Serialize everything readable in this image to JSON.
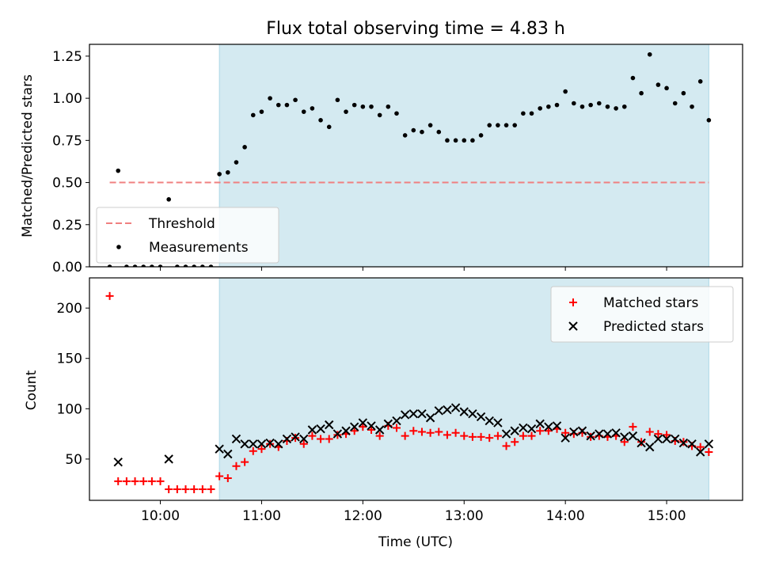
{
  "chart_data": [
    {
      "type": "scatter",
      "title": "Flux total observing time = 4.83 h",
      "xlabel": "",
      "ylabel": "Matched/Predicted stars",
      "xlim": [
        "09:18",
        "15:45"
      ],
      "ylim": [
        0,
        1.32
      ],
      "yticks": [
        0.0,
        0.25,
        0.5,
        0.75,
        1.0,
        1.25
      ],
      "ytick_labels": [
        "0.00",
        "0.25",
        "0.50",
        "0.75",
        "1.00",
        "1.25"
      ],
      "xticks": [
        "10:00",
        "11:00",
        "12:00",
        "13:00",
        "14:00",
        "15:00"
      ],
      "shaded_interval": [
        "10:35",
        "15:25"
      ],
      "shaded_color": "#d4eaf1",
      "threshold": {
        "name": "Threshold",
        "value": 0.5,
        "x_range": [
          "09:30",
          "15:25"
        ],
        "color": "#f08080",
        "style": "dashed"
      },
      "legend_position": "lower-left",
      "series": [
        {
          "name": "Measurements",
          "marker": "dot",
          "color": "#000000",
          "points": [
            [
              "09:30",
              0.0
            ],
            [
              "09:35",
              0.57
            ],
            [
              "09:40",
              0.0
            ],
            [
              "09:45",
              0.0
            ],
            [
              "09:50",
              0.0
            ],
            [
              "09:55",
              0.0
            ],
            [
              "10:00",
              0.0
            ],
            [
              "10:05",
              0.4
            ],
            [
              "10:10",
              0.0
            ],
            [
              "10:15",
              0.0
            ],
            [
              "10:20",
              0.0
            ],
            [
              "10:25",
              0.0
            ],
            [
              "10:30",
              0.0
            ],
            [
              "10:35",
              0.55
            ],
            [
              "10:40",
              0.56
            ],
            [
              "10:45",
              0.62
            ],
            [
              "10:50",
              0.71
            ],
            [
              "10:55",
              0.9
            ],
            [
              "11:00",
              0.92
            ],
            [
              "11:05",
              1.0
            ],
            [
              "11:10",
              0.96
            ],
            [
              "11:15",
              0.96
            ],
            [
              "11:20",
              0.99
            ],
            [
              "11:25",
              0.92
            ],
            [
              "11:30",
              0.94
            ],
            [
              "11:35",
              0.87
            ],
            [
              "11:40",
              0.83
            ],
            [
              "11:45",
              0.99
            ],
            [
              "11:50",
              0.92
            ],
            [
              "11:55",
              0.96
            ],
            [
              "12:00",
              0.95
            ],
            [
              "12:05",
              0.95
            ],
            [
              "12:10",
              0.9
            ],
            [
              "12:15",
              0.95
            ],
            [
              "12:20",
              0.91
            ],
            [
              "12:25",
              0.78
            ],
            [
              "12:30",
              0.81
            ],
            [
              "12:35",
              0.8
            ],
            [
              "12:40",
              0.84
            ],
            [
              "12:45",
              0.8
            ],
            [
              "12:50",
              0.75
            ],
            [
              "12:55",
              0.75
            ],
            [
              "13:00",
              0.75
            ],
            [
              "13:05",
              0.75
            ],
            [
              "13:10",
              0.78
            ],
            [
              "13:15",
              0.84
            ],
            [
              "13:20",
              0.84
            ],
            [
              "13:25",
              0.84
            ],
            [
              "13:30",
              0.84
            ],
            [
              "13:35",
              0.91
            ],
            [
              "13:40",
              0.91
            ],
            [
              "13:45",
              0.94
            ],
            [
              "13:50",
              0.95
            ],
            [
              "13:55",
              0.96
            ],
            [
              "14:00",
              1.04
            ],
            [
              "14:05",
              0.97
            ],
            [
              "14:10",
              0.95
            ],
            [
              "14:15",
              0.96
            ],
            [
              "14:20",
              0.97
            ],
            [
              "14:25",
              0.95
            ],
            [
              "14:30",
              0.94
            ],
            [
              "14:35",
              0.95
            ],
            [
              "14:40",
              1.12
            ],
            [
              "14:45",
              1.03
            ],
            [
              "14:50",
              1.26
            ],
            [
              "14:55",
              1.08
            ],
            [
              "15:00",
              1.06
            ],
            [
              "15:05",
              0.97
            ],
            [
              "15:10",
              1.03
            ],
            [
              "15:15",
              0.95
            ],
            [
              "15:20",
              1.1
            ],
            [
              "15:25",
              0.87
            ]
          ]
        }
      ]
    },
    {
      "type": "scatter",
      "title": "",
      "xlabel": "Time (UTC)",
      "ylabel": "Count",
      "xlim": [
        "09:18",
        "15:45"
      ],
      "ylim": [
        9,
        230
      ],
      "yticks": [
        50,
        100,
        150,
        200
      ],
      "ytick_labels": [
        "50",
        "100",
        "150",
        "200"
      ],
      "xticks": [
        "10:00",
        "11:00",
        "12:00",
        "13:00",
        "14:00",
        "15:00"
      ],
      "xtick_labels": [
        "10:00",
        "11:00",
        "12:00",
        "13:00",
        "14:00",
        "15:00"
      ],
      "shaded_interval": [
        "10:35",
        "15:25"
      ],
      "shaded_color": "#d4eaf1",
      "legend_position": "upper-right",
      "series": [
        {
          "name": "Matched stars",
          "marker": "plus",
          "color": "#ff0000",
          "points": [
            [
              "09:30",
              212
            ],
            [
              "09:35",
              28
            ],
            [
              "09:40",
              28
            ],
            [
              "09:45",
              28
            ],
            [
              "09:50",
              28
            ],
            [
              "09:55",
              28
            ],
            [
              "10:00",
              28
            ],
            [
              "10:05",
              20
            ],
            [
              "10:10",
              20
            ],
            [
              "10:15",
              20
            ],
            [
              "10:20",
              20
            ],
            [
              "10:25",
              20
            ],
            [
              "10:30",
              20
            ],
            [
              "10:35",
              33
            ],
            [
              "10:40",
              31
            ],
            [
              "10:45",
              43
            ],
            [
              "10:50",
              47
            ],
            [
              "10:55",
              58
            ],
            [
              "11:00",
              60
            ],
            [
              "11:05",
              65
            ],
            [
              "11:10",
              62
            ],
            [
              "11:15",
              68
            ],
            [
              "11:20",
              71
            ],
            [
              "11:25",
              65
            ],
            [
              "11:30",
              73
            ],
            [
              "11:35",
              70
            ],
            [
              "11:40",
              70
            ],
            [
              "11:45",
              74
            ],
            [
              "11:50",
              75
            ],
            [
              "11:55",
              78
            ],
            [
              "12:00",
              82
            ],
            [
              "12:05",
              79
            ],
            [
              "12:10",
              73
            ],
            [
              "12:15",
              83
            ],
            [
              "12:20",
              81
            ],
            [
              "12:25",
              73
            ],
            [
              "12:30",
              78
            ],
            [
              "12:35",
              77
            ],
            [
              "12:40",
              76
            ],
            [
              "12:45",
              77
            ],
            [
              "12:50",
              74
            ],
            [
              "12:55",
              76
            ],
            [
              "13:00",
              73
            ],
            [
              "13:05",
              72
            ],
            [
              "13:10",
              72
            ],
            [
              "13:15",
              71
            ],
            [
              "13:20",
              73
            ],
            [
              "13:25",
              63
            ],
            [
              "13:30",
              67
            ],
            [
              "13:35",
              73
            ],
            [
              "13:40",
              73
            ],
            [
              "13:45",
              78
            ],
            [
              "13:50",
              78
            ],
            [
              "13:55",
              80
            ],
            [
              "14:00",
              76
            ],
            [
              "14:05",
              75
            ],
            [
              "14:10",
              76
            ],
            [
              "14:15",
              72
            ],
            [
              "14:20",
              73
            ],
            [
              "14:25",
              72
            ],
            [
              "14:30",
              73
            ],
            [
              "14:35",
              67
            ],
            [
              "14:40",
              82
            ],
            [
              "14:45",
              67
            ],
            [
              "14:50",
              77
            ],
            [
              "14:55",
              75
            ],
            [
              "15:00",
              74
            ],
            [
              "15:05",
              68
            ],
            [
              "15:10",
              67
            ],
            [
              "15:15",
              63
            ],
            [
              "15:20",
              62
            ],
            [
              "15:25",
              57
            ]
          ]
        },
        {
          "name": "Predicted stars",
          "marker": "x",
          "color": "#000000",
          "points": [
            [
              "09:35",
              47
            ],
            [
              "10:05",
              50
            ],
            [
              "10:35",
              60
            ],
            [
              "10:40",
              55
            ],
            [
              "10:45",
              70
            ],
            [
              "10:50",
              65
            ],
            [
              "10:55",
              65
            ],
            [
              "11:00",
              65
            ],
            [
              "11:05",
              66
            ],
            [
              "11:10",
              65
            ],
            [
              "11:15",
              70
            ],
            [
              "11:20",
              72
            ],
            [
              "11:25",
              70
            ],
            [
              "11:30",
              79
            ],
            [
              "11:35",
              80
            ],
            [
              "11:40",
              84
            ],
            [
              "11:45",
              75
            ],
            [
              "11:50",
              78
            ],
            [
              "11:55",
              82
            ],
            [
              "12:00",
              86
            ],
            [
              "12:05",
              83
            ],
            [
              "12:10",
              79
            ],
            [
              "12:15",
              85
            ],
            [
              "12:20",
              88
            ],
            [
              "12:25",
              94
            ],
            [
              "12:30",
              95
            ],
            [
              "12:35",
              95
            ],
            [
              "12:40",
              91
            ],
            [
              "12:45",
              98
            ],
            [
              "12:50",
              99
            ],
            [
              "12:55",
              101
            ],
            [
              "13:00",
              97
            ],
            [
              "13:05",
              95
            ],
            [
              "13:10",
              92
            ],
            [
              "13:15",
              88
            ],
            [
              "13:20",
              86
            ],
            [
              "13:25",
              75
            ],
            [
              "13:30",
              78
            ],
            [
              "13:35",
              81
            ],
            [
              "13:40",
              80
            ],
            [
              "13:45",
              85
            ],
            [
              "13:50",
              82
            ],
            [
              "13:55",
              83
            ],
            [
              "14:00",
              71
            ],
            [
              "14:05",
              77
            ],
            [
              "14:10",
              78
            ],
            [
              "14:15",
              73
            ],
            [
              "14:20",
              75
            ],
            [
              "14:25",
              75
            ],
            [
              "14:30",
              76
            ],
            [
              "14:35",
              72
            ],
            [
              "14:40",
              73
            ],
            [
              "14:45",
              66
            ],
            [
              "14:50",
              62
            ],
            [
              "14:55",
              70
            ],
            [
              "15:00",
              70
            ],
            [
              "15:05",
              70
            ],
            [
              "15:10",
              66
            ],
            [
              "15:15",
              65
            ],
            [
              "15:20",
              57
            ],
            [
              "15:25",
              65
            ]
          ]
        }
      ]
    }
  ]
}
